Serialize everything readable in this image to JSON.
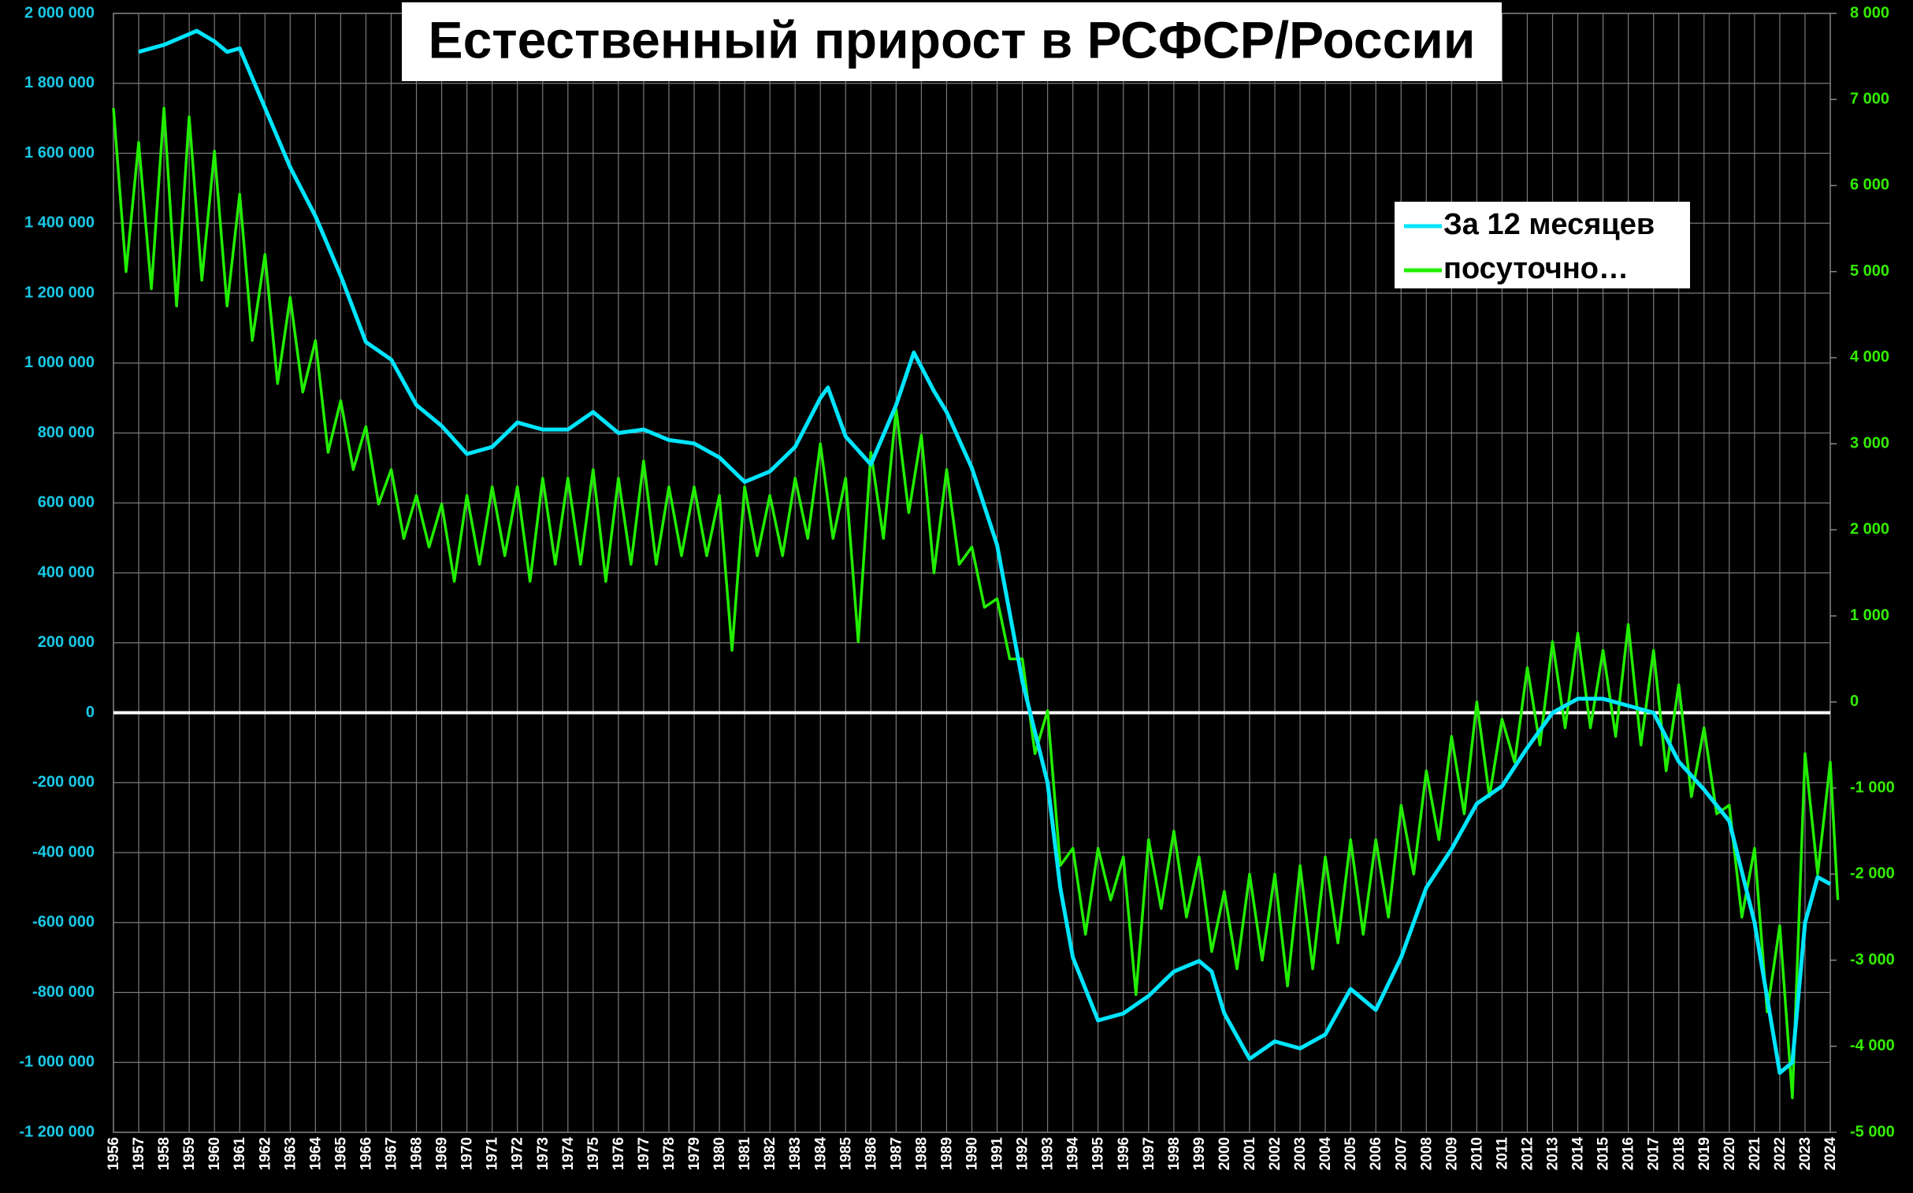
{
  "chart_data": {
    "type": "line",
    "title": "Естественный прирост в РСФСР/России",
    "legend": "upper right",
    "grid": true,
    "xlim": [
      1956,
      2024
    ],
    "xticks": [
      1956,
      1957,
      1958,
      1959,
      1960,
      1961,
      1962,
      1963,
      1964,
      1965,
      1966,
      1967,
      1968,
      1969,
      1970,
      1971,
      1972,
      1973,
      1974,
      1975,
      1976,
      1977,
      1978,
      1979,
      1980,
      1981,
      1982,
      1983,
      1984,
      1985,
      1986,
      1987,
      1988,
      1989,
      1990,
      1991,
      1992,
      1993,
      1994,
      1995,
      1996,
      1997,
      1998,
      1999,
      2000,
      2001,
      2002,
      2003,
      2004,
      2005,
      2006,
      2007,
      2008,
      2009,
      2010,
      2011,
      2012,
      2013,
      2014,
      2015,
      2016,
      2017,
      2018,
      2019,
      2020,
      2021,
      2022,
      2023,
      2024
    ],
    "ylim": [
      -1200000,
      2000000
    ],
    "yticks": [
      {
        "value": 2000000,
        "label": "2 000 000"
      },
      {
        "value": 1800000,
        "label": "1 800 000"
      },
      {
        "value": 1600000,
        "label": "1 600 000"
      },
      {
        "value": 1400000,
        "label": "1 400 000"
      },
      {
        "value": 1200000,
        "label": "1 200 000"
      },
      {
        "value": 1000000,
        "label": "1 000 000"
      },
      {
        "value": 800000,
        "label": "800 000"
      },
      {
        "value": 600000,
        "label": "600 000"
      },
      {
        "value": 400000,
        "label": "400 000"
      },
      {
        "value": 200000,
        "label": "200 000"
      },
      0,
      {
        "value": -200000,
        "label": "-200 000"
      },
      {
        "value": -400000,
        "label": "-400 000"
      },
      {
        "value": -600000,
        "label": "-600 000"
      },
      {
        "value": -800000,
        "label": "-800 000"
      },
      {
        "value": -1000000,
        "label": "-1 000 000"
      },
      {
        "value": -1200000,
        "label": "-1 200 000"
      }
    ],
    "y2lim": [
      -5000,
      8000
    ],
    "y2ticks": [
      {
        "value": 8000,
        "label": "8 000"
      },
      {
        "value": 7000,
        "label": "7 000"
      },
      {
        "value": 6000,
        "label": "6 000"
      },
      {
        "value": 5000,
        "label": "5 000"
      },
      {
        "value": 4000,
        "label": "4 000"
      },
      {
        "value": 3000,
        "label": "3 000"
      },
      {
        "value": 2000,
        "label": "2 000"
      },
      {
        "value": 1000,
        "label": "1 000"
      },
      0,
      {
        "value": -1000,
        "label": "-1 000"
      },
      {
        "value": -2000,
        "label": "-2 000"
      },
      {
        "value": -3000,
        "label": "-3 000"
      },
      {
        "value": -4000,
        "label": "-4 000"
      },
      {
        "value": -5000,
        "label": "-5 000"
      }
    ],
    "series": [
      {
        "name": "За 12 месяцев",
        "color": "#00e5ff",
        "x": [
          1957,
          1958,
          1959.3,
          1960,
          1960.5,
          1961,
          1962,
          1963,
          1964,
          1965,
          1966,
          1967,
          1968,
          1969,
          1970,
          1971,
          1972,
          1973,
          1974,
          1975,
          1976,
          1977,
          1978,
          1979,
          1980,
          1981,
          1982,
          1983,
          1984,
          1984.3,
          1985,
          1986,
          1987,
          1987.7,
          1988.5,
          1989,
          1990,
          1991,
          1992,
          1993,
          1993.5,
          1994,
          1995,
          1996,
          1997,
          1998,
          1999,
          1999.5,
          2000,
          2001,
          2002,
          2003,
          2004,
          2005,
          2006,
          2007,
          2008,
          2009,
          2010,
          2011,
          2012,
          2013,
          2014,
          2015,
          2016,
          2017,
          2018,
          2019,
          2020,
          2021,
          2022,
          2022.5,
          2023,
          2023.5,
          2024
        ],
        "values": [
          1890000,
          1910000,
          1950000,
          1920000,
          1890000,
          1900000,
          1730000,
          1560000,
          1420000,
          1250000,
          1060000,
          1010000,
          880000,
          820000,
          740000,
          760000,
          830000,
          810000,
          810000,
          860000,
          800000,
          810000,
          780000,
          770000,
          730000,
          660000,
          690000,
          760000,
          900000,
          930000,
          790000,
          710000,
          880000,
          1030000,
          920000,
          860000,
          700000,
          480000,
          90000,
          -200000,
          -500000,
          -700000,
          -880000,
          -860000,
          -810000,
          -740000,
          -710000,
          -740000,
          -860000,
          -990000,
          -940000,
          -960000,
          -920000,
          -790000,
          -850000,
          -700000,
          -500000,
          -390000,
          -260000,
          -210000,
          -100000,
          0,
          40000,
          40000,
          20000,
          0,
          -140000,
          -220000,
          -310000,
          -600000,
          -1030000,
          -1000000,
          -600000,
          -470000,
          -490000
        ]
      },
      {
        "name": "посуточно…",
        "color": "#22ee00",
        "axis": "y2",
        "x": [
          1956,
          1956.5,
          1957,
          1957.5,
          1958,
          1958.5,
          1959,
          1959.5,
          1960,
          1960.5,
          1961,
          1961.5,
          1962,
          1962.5,
          1963,
          1963.5,
          1964,
          1964.5,
          1965,
          1965.5,
          1966,
          1966.5,
          1967,
          1967.5,
          1968,
          1968.5,
          1969,
          1969.5,
          1970,
          1970.5,
          1971,
          1971.5,
          1972,
          1972.5,
          1973,
          1973.5,
          1974,
          1974.5,
          1975,
          1975.5,
          1976,
          1976.5,
          1977,
          1977.5,
          1978,
          1978.5,
          1979,
          1979.5,
          1980,
          1980.5,
          1981,
          1981.5,
          1982,
          1982.5,
          1983,
          1983.5,
          1984,
          1984.5,
          1985,
          1985.5,
          1986,
          1986.5,
          1987,
          1987.5,
          1988,
          1988.5,
          1989,
          1989.5,
          1990,
          1990.5,
          1991,
          1991.5,
          1992,
          1992.5,
          1993,
          1993.5,
          1994,
          1994.5,
          1995,
          1995.5,
          1996,
          1996.5,
          1997,
          1997.5,
          1998,
          1998.5,
          1999,
          1999.5,
          2000,
          2000.5,
          2001,
          2001.5,
          2002,
          2002.5,
          2003,
          2003.5,
          2004,
          2004.5,
          2005,
          2005.5,
          2006,
          2006.5,
          2007,
          2007.5,
          2008,
          2008.5,
          2009,
          2009.5,
          2010,
          2010.5,
          2011,
          2011.5,
          2012,
          2012.5,
          2013,
          2013.5,
          2014,
          2014.5,
          2015,
          2015.5,
          2016,
          2016.5,
          2017,
          2017.5,
          2018,
          2018.5,
          2019,
          2019.5,
          2020,
          2020.5,
          2021,
          2021.5,
          2022,
          2022.5,
          2023,
          2023.5,
          2024,
          2024.3
        ],
        "values": [
          6900,
          5000,
          6500,
          4800,
          6900,
          4600,
          6800,
          4900,
          6400,
          4600,
          5900,
          4200,
          5200,
          3700,
          4700,
          3600,
          4200,
          2900,
          3500,
          2700,
          3200,
          2300,
          2700,
          1900,
          2400,
          1800,
          2300,
          1400,
          2400,
          1600,
          2500,
          1700,
          2500,
          1400,
          2600,
          1600,
          2600,
          1600,
          2700,
          1400,
          2600,
          1600,
          2800,
          1600,
          2500,
          1700,
          2500,
          1700,
          2400,
          600,
          2500,
          1700,
          2400,
          1700,
          2600,
          1900,
          3000,
          1900,
          2600,
          700,
          2900,
          1900,
          3400,
          2200,
          3100,
          1500,
          2700,
          1600,
          1800,
          1100,
          1200,
          500,
          500,
          -600,
          -100,
          -1900,
          -1700,
          -2700,
          -1700,
          -2300,
          -1800,
          -3400,
          -1600,
          -2400,
          -1500,
          -2500,
          -1800,
          -2900,
          -2200,
          -3100,
          -2000,
          -3000,
          -2000,
          -3300,
          -1900,
          -3100,
          -1800,
          -2800,
          -1600,
          -2700,
          -1600,
          -2500,
          -1200,
          -2000,
          -800,
          -1600,
          -400,
          -1300,
          0,
          -1100,
          -200,
          -700,
          400,
          -500,
          700,
          -300,
          800,
          -300,
          600,
          -400,
          900,
          -500,
          600,
          -800,
          200,
          -1100,
          -300,
          -1300,
          -1200,
          -2500,
          -1700,
          -3600,
          -2600,
          -4600,
          -600,
          -2000,
          -700,
          -2300
        ]
      }
    ]
  }
}
